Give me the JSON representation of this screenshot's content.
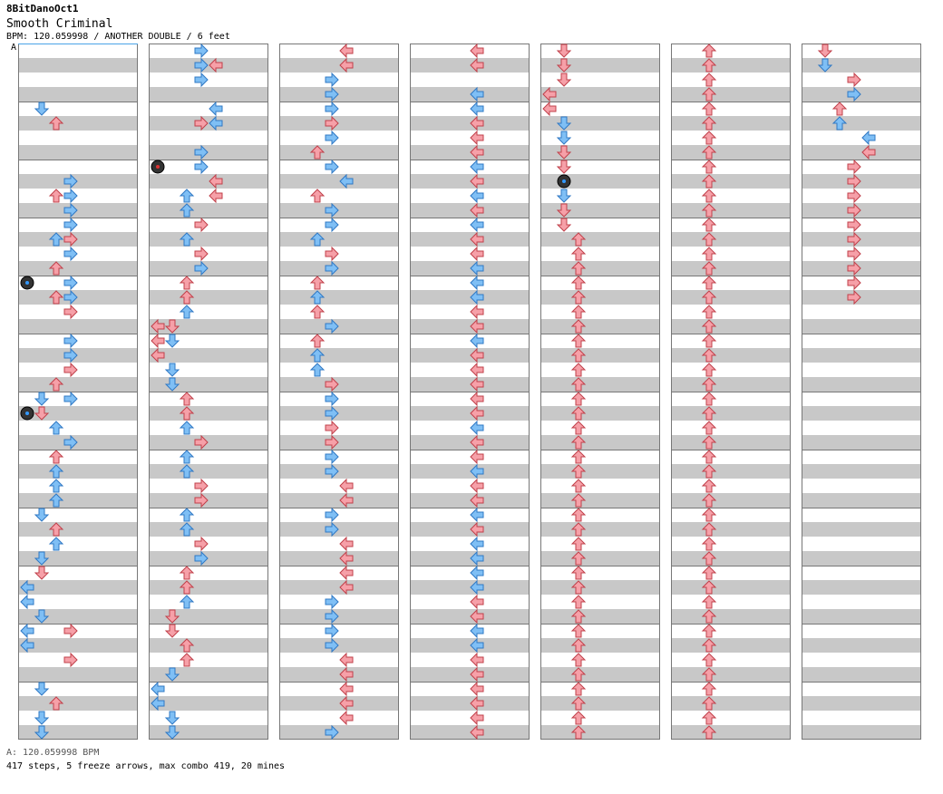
{
  "header": {
    "author": "8BitDanoOct1",
    "song": "Smooth Criminal",
    "meta": "BPM: 120.059998 / ANOTHER DOUBLE / 6 feet"
  },
  "bpm_marker": "A",
  "footer": {
    "bpm_line": "A: 120.059998 BPM",
    "stats": "417 steps, 5 freeze arrows, max combo 419, 20 mines"
  },
  "colors": {
    "blue_arrow": "#7fbff5",
    "red_arrow": "#f6a0a8",
    "freeze_green": "#a8f0a0",
    "mine": "#333333",
    "row_gray": "#c8c8c8"
  },
  "columns": [
    {
      "notes": [
        [
          4,
          1,
          "b"
        ],
        [
          5,
          2,
          "r"
        ],
        [
          10,
          2,
          "r"
        ],
        [
          9,
          3,
          "b"
        ],
        [
          10,
          3,
          "b"
        ],
        [
          11,
          3,
          "b"
        ],
        [
          12,
          3,
          "b"
        ],
        [
          13,
          3,
          "r"
        ],
        [
          13,
          2,
          "b"
        ],
        [
          14,
          3,
          "b"
        ],
        [
          15,
          2,
          "r"
        ],
        [
          16,
          3,
          "b"
        ],
        [
          17,
          2,
          "r"
        ],
        [
          16,
          0,
          "m"
        ],
        [
          17,
          3,
          "b"
        ],
        [
          18,
          3,
          "r"
        ],
        [
          20,
          3,
          "b"
        ],
        [
          21,
          3,
          "b"
        ],
        [
          22,
          3,
          "r"
        ],
        [
          23,
          2,
          "r"
        ],
        [
          24,
          1,
          "b"
        ],
        [
          24,
          3,
          "b"
        ],
        [
          25,
          1,
          "r"
        ],
        [
          25,
          0,
          "m"
        ],
        [
          26,
          2,
          "b"
        ],
        [
          27,
          3,
          "b"
        ],
        [
          28,
          2,
          "r"
        ],
        [
          29,
          2,
          "b"
        ],
        [
          30,
          2,
          "b"
        ],
        [
          31,
          2,
          "b"
        ],
        [
          32,
          1,
          "b"
        ],
        [
          33,
          2,
          "r"
        ],
        [
          34,
          2,
          "b"
        ],
        [
          35,
          1,
          "b"
        ],
        [
          36,
          1,
          "r"
        ],
        [
          37,
          0,
          "b"
        ],
        [
          38,
          0,
          "b"
        ],
        [
          39,
          1,
          "b"
        ],
        [
          40,
          0,
          "b"
        ],
        [
          40,
          3,
          "r"
        ],
        [
          41,
          0,
          "b"
        ],
        [
          42,
          3,
          "r"
        ],
        [
          44,
          1,
          "b"
        ],
        [
          45,
          2,
          "r"
        ],
        [
          46,
          1,
          "b"
        ],
        [
          47,
          1,
          "b"
        ]
      ]
    },
    {
      "notes": [
        [
          0,
          3,
          "b"
        ],
        [
          1,
          3,
          "b"
        ],
        [
          1,
          4,
          "r"
        ],
        [
          2,
          3,
          "b"
        ],
        [
          4,
          4,
          "b"
        ],
        [
          5,
          4,
          "b"
        ],
        [
          5,
          3,
          "r"
        ],
        [
          7,
          3,
          "b"
        ],
        [
          8,
          3,
          "b"
        ],
        [
          8,
          0,
          "m"
        ],
        [
          9,
          4,
          "r"
        ],
        [
          10,
          2,
          "b"
        ],
        [
          10,
          4,
          "r"
        ],
        [
          11,
          2,
          "b"
        ],
        [
          12,
          3,
          "r"
        ],
        [
          13,
          2,
          "b"
        ],
        [
          14,
          3,
          "r"
        ],
        [
          15,
          3,
          "b"
        ],
        [
          16,
          2,
          "r"
        ],
        [
          17,
          2,
          "r"
        ],
        [
          18,
          2,
          "b"
        ],
        [
          19,
          0,
          "r"
        ],
        [
          20,
          0,
          "r"
        ],
        [
          19,
          1,
          "r"
        ],
        [
          20,
          1,
          "b"
        ],
        [
          21,
          0,
          "r"
        ],
        [
          22,
          1,
          "b"
        ],
        [
          23,
          1,
          "b"
        ],
        [
          24,
          2,
          "r"
        ],
        [
          25,
          2,
          "r"
        ],
        [
          26,
          2,
          "b"
        ],
        [
          27,
          3,
          "r"
        ],
        [
          28,
          2,
          "b"
        ],
        [
          29,
          2,
          "b"
        ],
        [
          30,
          3,
          "r"
        ],
        [
          31,
          3,
          "r"
        ],
        [
          32,
          2,
          "b"
        ],
        [
          33,
          2,
          "b"
        ],
        [
          34,
          3,
          "r"
        ],
        [
          35,
          3,
          "b"
        ],
        [
          36,
          2,
          "r"
        ],
        [
          37,
          2,
          "r"
        ],
        [
          38,
          2,
          "b"
        ],
        [
          39,
          1,
          "r"
        ],
        [
          40,
          1,
          "r"
        ],
        [
          41,
          2,
          "r"
        ],
        [
          42,
          2,
          "r"
        ],
        [
          43,
          1,
          "b"
        ],
        [
          44,
          0,
          "b"
        ],
        [
          45,
          0,
          "b"
        ],
        [
          46,
          1,
          "b"
        ],
        [
          47,
          1,
          "b"
        ]
      ]
    },
    {
      "notes": [
        [
          0,
          4,
          "r"
        ],
        [
          1,
          4,
          "r"
        ],
        [
          2,
          3,
          "b"
        ],
        [
          3,
          3,
          "b"
        ],
        [
          4,
          3,
          "b"
        ],
        [
          5,
          3,
          "r"
        ],
        [
          6,
          3,
          "b"
        ],
        [
          7,
          2,
          "r"
        ],
        [
          8,
          3,
          "b"
        ],
        [
          9,
          4,
          "b"
        ],
        [
          10,
          2,
          "r"
        ],
        [
          11,
          3,
          "b"
        ],
        [
          12,
          3,
          "b"
        ],
        [
          13,
          2,
          "b"
        ],
        [
          14,
          3,
          "r"
        ],
        [
          15,
          3,
          "b"
        ],
        [
          16,
          2,
          "r"
        ],
        [
          17,
          2,
          "b"
        ],
        [
          18,
          2,
          "r"
        ],
        [
          19,
          3,
          "b"
        ],
        [
          20,
          2,
          "r"
        ],
        [
          21,
          2,
          "b"
        ],
        [
          22,
          2,
          "b"
        ],
        [
          23,
          3,
          "r"
        ],
        [
          24,
          3,
          "b"
        ],
        [
          25,
          3,
          "b"
        ],
        [
          26,
          3,
          "r"
        ],
        [
          27,
          3,
          "r"
        ],
        [
          28,
          3,
          "b"
        ],
        [
          29,
          3,
          "b"
        ],
        [
          30,
          4,
          "r"
        ],
        [
          31,
          4,
          "r"
        ],
        [
          32,
          3,
          "b"
        ],
        [
          33,
          3,
          "b"
        ],
        [
          34,
          4,
          "r"
        ],
        [
          35,
          4,
          "r"
        ],
        [
          36,
          4,
          "r"
        ],
        [
          37,
          4,
          "r"
        ],
        [
          38,
          3,
          "b"
        ],
        [
          39,
          3,
          "b"
        ],
        [
          40,
          3,
          "b"
        ],
        [
          41,
          3,
          "b"
        ],
        [
          42,
          4,
          "r"
        ],
        [
          43,
          4,
          "r"
        ],
        [
          44,
          4,
          "r"
        ],
        [
          45,
          4,
          "r"
        ],
        [
          46,
          4,
          "r"
        ],
        [
          47,
          3,
          "b"
        ]
      ]
    },
    {
      "notes": [
        [
          0,
          4,
          "r"
        ],
        [
          1,
          4,
          "r"
        ],
        [
          3,
          4,
          "b"
        ],
        [
          4,
          4,
          "b"
        ],
        [
          5,
          4,
          "r"
        ],
        [
          6,
          4,
          "r"
        ],
        [
          7,
          4,
          "r"
        ],
        [
          8,
          4,
          "b"
        ],
        [
          9,
          4,
          "r"
        ],
        [
          10,
          4,
          "b"
        ],
        [
          11,
          4,
          "r"
        ],
        [
          12,
          4,
          "b"
        ],
        [
          13,
          4,
          "r"
        ],
        [
          14,
          4,
          "r"
        ],
        [
          15,
          4,
          "b"
        ],
        [
          16,
          4,
          "b"
        ],
        [
          17,
          4,
          "b"
        ],
        [
          18,
          4,
          "r"
        ],
        [
          19,
          4,
          "r"
        ],
        [
          20,
          4,
          "b"
        ],
        [
          21,
          4,
          "r"
        ],
        [
          22,
          4,
          "r"
        ],
        [
          23,
          4,
          "r"
        ],
        [
          24,
          4,
          "r"
        ],
        [
          25,
          4,
          "r"
        ],
        [
          26,
          4,
          "b"
        ],
        [
          27,
          4,
          "r"
        ],
        [
          28,
          4,
          "r"
        ],
        [
          29,
          4,
          "b"
        ],
        [
          30,
          4,
          "r"
        ],
        [
          31,
          4,
          "r"
        ],
        [
          32,
          4,
          "b"
        ],
        [
          33,
          4,
          "r"
        ],
        [
          34,
          4,
          "b"
        ],
        [
          35,
          4,
          "b"
        ],
        [
          36,
          4,
          "b"
        ],
        [
          37,
          4,
          "b"
        ],
        [
          38,
          4,
          "r"
        ],
        [
          39,
          4,
          "r"
        ],
        [
          40,
          4,
          "b"
        ],
        [
          41,
          4,
          "b"
        ],
        [
          42,
          4,
          "r"
        ],
        [
          43,
          4,
          "r"
        ],
        [
          44,
          4,
          "r"
        ],
        [
          45,
          4,
          "r"
        ],
        [
          46,
          4,
          "r"
        ],
        [
          47,
          4,
          "r"
        ]
      ]
    },
    {
      "notes": [
        [
          0,
          1,
          "r"
        ],
        [
          1,
          1,
          "r"
        ],
        [
          2,
          1,
          "r"
        ],
        [
          3,
          0,
          "r"
        ],
        [
          4,
          0,
          "r"
        ],
        [
          5,
          1,
          "b"
        ],
        [
          6,
          1,
          "b"
        ],
        [
          7,
          1,
          "r"
        ],
        [
          8,
          1,
          "r"
        ],
        [
          9,
          1,
          "m"
        ],
        [
          10,
          1,
          "b"
        ],
        [
          11,
          1,
          "r"
        ],
        [
          12,
          1,
          "r"
        ],
        [
          13,
          2,
          "r"
        ],
        [
          14,
          2,
          "r"
        ],
        [
          15,
          2,
          "r"
        ],
        [
          16,
          2,
          "r"
        ],
        [
          17,
          2,
          "r"
        ],
        [
          18,
          2,
          "r"
        ],
        [
          19,
          2,
          "r"
        ],
        [
          20,
          2,
          "r"
        ],
        [
          21,
          2,
          "r"
        ],
        [
          22,
          2,
          "r"
        ],
        [
          23,
          2,
          "r"
        ],
        [
          24,
          2,
          "r"
        ],
        [
          25,
          2,
          "r"
        ],
        [
          26,
          2,
          "r"
        ],
        [
          27,
          2,
          "r"
        ],
        [
          28,
          2,
          "r"
        ],
        [
          29,
          2,
          "r"
        ],
        [
          30,
          2,
          "r"
        ],
        [
          31,
          2,
          "r"
        ],
        [
          32,
          2,
          "r"
        ],
        [
          33,
          2,
          "r"
        ],
        [
          34,
          2,
          "r"
        ],
        [
          35,
          2,
          "r"
        ],
        [
          36,
          2,
          "r"
        ],
        [
          37,
          2,
          "r"
        ],
        [
          38,
          2,
          "r"
        ],
        [
          39,
          2,
          "r"
        ],
        [
          40,
          2,
          "r"
        ],
        [
          41,
          2,
          "r"
        ],
        [
          42,
          2,
          "r"
        ],
        [
          43,
          2,
          "r"
        ],
        [
          44,
          2,
          "r"
        ],
        [
          45,
          2,
          "r"
        ],
        [
          46,
          2,
          "r"
        ],
        [
          47,
          2,
          "r"
        ]
      ]
    },
    {
      "notes": [
        [
          0,
          2,
          "r"
        ],
        [
          1,
          2,
          "r"
        ],
        [
          2,
          2,
          "r"
        ],
        [
          3,
          2,
          "r"
        ],
        [
          4,
          2,
          "r"
        ],
        [
          5,
          2,
          "r"
        ],
        [
          6,
          2,
          "r"
        ],
        [
          7,
          2,
          "r"
        ],
        [
          8,
          2,
          "r"
        ],
        [
          9,
          2,
          "r"
        ],
        [
          10,
          2,
          "r"
        ],
        [
          11,
          2,
          "r"
        ],
        [
          12,
          2,
          "r"
        ],
        [
          13,
          2,
          "r"
        ],
        [
          14,
          2,
          "r"
        ],
        [
          15,
          2,
          "r"
        ],
        [
          16,
          2,
          "r"
        ],
        [
          17,
          2,
          "r"
        ],
        [
          18,
          2,
          "r"
        ],
        [
          19,
          2,
          "r"
        ],
        [
          20,
          2,
          "r"
        ],
        [
          21,
          2,
          "r"
        ],
        [
          22,
          2,
          "r"
        ],
        [
          23,
          2,
          "r"
        ],
        [
          24,
          2,
          "r"
        ],
        [
          25,
          2,
          "r"
        ],
        [
          26,
          2,
          "r"
        ],
        [
          27,
          2,
          "r"
        ],
        [
          28,
          2,
          "r"
        ],
        [
          29,
          2,
          "r"
        ],
        [
          30,
          2,
          "r"
        ],
        [
          31,
          2,
          "r"
        ],
        [
          32,
          2,
          "r"
        ],
        [
          33,
          2,
          "r"
        ],
        [
          34,
          2,
          "r"
        ],
        [
          35,
          2,
          "r"
        ],
        [
          36,
          2,
          "r"
        ],
        [
          37,
          2,
          "r"
        ],
        [
          38,
          2,
          "r"
        ],
        [
          39,
          2,
          "r"
        ],
        [
          40,
          2,
          "r"
        ],
        [
          41,
          2,
          "r"
        ],
        [
          42,
          2,
          "r"
        ],
        [
          43,
          2,
          "r"
        ],
        [
          44,
          2,
          "r"
        ],
        [
          45,
          2,
          "r"
        ],
        [
          46,
          2,
          "r"
        ],
        [
          47,
          2,
          "r"
        ]
      ]
    },
    {
      "notes": [
        [
          0,
          1,
          "r"
        ],
        [
          1,
          1,
          "b"
        ],
        [
          2,
          3,
          "r"
        ],
        [
          3,
          3,
          "b"
        ],
        [
          4,
          2,
          "r"
        ],
        [
          5,
          2,
          "b"
        ],
        [
          6,
          4,
          "b"
        ],
        [
          7,
          4,
          "r"
        ],
        [
          8,
          3,
          "r"
        ],
        [
          9,
          3,
          "r"
        ],
        [
          10,
          3,
          "r"
        ],
        [
          11,
          3,
          "r"
        ],
        [
          12,
          3,
          "r"
        ],
        [
          13,
          3,
          "r"
        ],
        [
          14,
          3,
          "r"
        ],
        [
          15,
          3,
          "r"
        ],
        [
          16,
          3,
          "r"
        ],
        [
          17,
          3,
          "r"
        ]
      ]
    }
  ]
}
